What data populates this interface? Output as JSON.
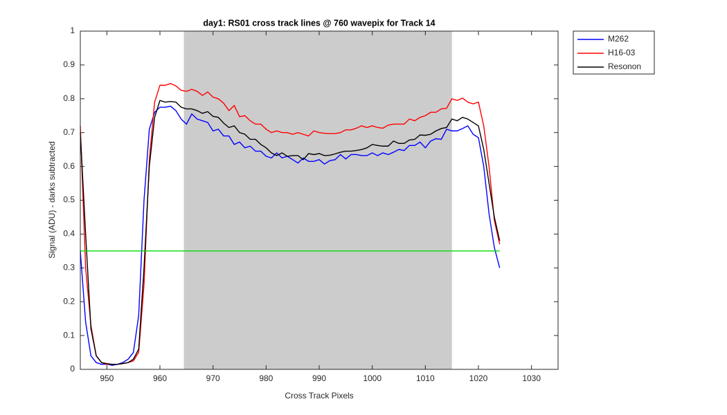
{
  "chart_data": {
    "type": "line",
    "title": "day1: RS01  cross track lines @ 760 wavepix for Track 14",
    "xlabel": "Cross Track Pixels",
    "ylabel": "Signal (ADU) - darks subtracted",
    "x": [
      945,
      946,
      947,
      948,
      949,
      950,
      951,
      952,
      953,
      954,
      955,
      956,
      957,
      958,
      959,
      960,
      961,
      962,
      963,
      964,
      965,
      966,
      967,
      968,
      969,
      970,
      971,
      972,
      973,
      974,
      975,
      976,
      977,
      978,
      979,
      980,
      981,
      982,
      983,
      984,
      985,
      986,
      987,
      988,
      989,
      990,
      991,
      992,
      993,
      994,
      995,
      996,
      997,
      998,
      999,
      1000,
      1001,
      1002,
      1003,
      1004,
      1005,
      1006,
      1007,
      1008,
      1009,
      1010,
      1011,
      1012,
      1013,
      1014,
      1015,
      1016,
      1017,
      1018,
      1019,
      1020,
      1021,
      1022,
      1023,
      1024
    ],
    "series": [
      {
        "name": "M262",
        "color": "#0000ff",
        "values": [
          0.35,
          0.14,
          0.04,
          0.02,
          0.015,
          0.015,
          0.012,
          0.015,
          0.02,
          0.03,
          0.05,
          0.16,
          0.5,
          0.71,
          0.76,
          0.775,
          0.775,
          0.778,
          0.765,
          0.74,
          0.725,
          0.755,
          0.74,
          0.735,
          0.73,
          0.705,
          0.71,
          0.69,
          0.69,
          0.665,
          0.672,
          0.655,
          0.66,
          0.645,
          0.645,
          0.63,
          0.625,
          0.64,
          0.625,
          0.63,
          0.62,
          0.61,
          0.625,
          0.615,
          0.615,
          0.62,
          0.607,
          0.617,
          0.62,
          0.635,
          0.622,
          0.635,
          0.635,
          0.632,
          0.632,
          0.64,
          0.632,
          0.64,
          0.635,
          0.642,
          0.65,
          0.647,
          0.662,
          0.662,
          0.672,
          0.655,
          0.675,
          0.682,
          0.68,
          0.71,
          0.705,
          0.705,
          0.712,
          0.72,
          0.695,
          0.685,
          0.6,
          0.46,
          0.36,
          0.3
        ]
      },
      {
        "name": "H16-03",
        "color": "#ff0000",
        "values": [
          0.72,
          0.3,
          0.13,
          0.04,
          0.02,
          0.015,
          0.015,
          0.015,
          0.017,
          0.02,
          0.025,
          0.05,
          0.25,
          0.62,
          0.79,
          0.84,
          0.84,
          0.845,
          0.838,
          0.825,
          0.822,
          0.828,
          0.822,
          0.81,
          0.82,
          0.805,
          0.8,
          0.787,
          0.765,
          0.78,
          0.747,
          0.75,
          0.735,
          0.725,
          0.725,
          0.71,
          0.7,
          0.705,
          0.7,
          0.7,
          0.695,
          0.7,
          0.695,
          0.69,
          0.705,
          0.7,
          0.698,
          0.697,
          0.697,
          0.7,
          0.708,
          0.708,
          0.713,
          0.72,
          0.715,
          0.72,
          0.715,
          0.713,
          0.722,
          0.725,
          0.725,
          0.725,
          0.74,
          0.735,
          0.745,
          0.75,
          0.76,
          0.76,
          0.77,
          0.772,
          0.8,
          0.795,
          0.802,
          0.79,
          0.785,
          0.79,
          0.72,
          0.6,
          0.44,
          0.37
        ]
      },
      {
        "name": "Resonon",
        "color": "#000000",
        "values": [
          0.7,
          0.4,
          0.12,
          0.04,
          0.02,
          0.017,
          0.015,
          0.015,
          0.017,
          0.02,
          0.03,
          0.06,
          0.3,
          0.6,
          0.745,
          0.795,
          0.79,
          0.792,
          0.79,
          0.775,
          0.77,
          0.77,
          0.765,
          0.757,
          0.762,
          0.748,
          0.745,
          0.728,
          0.715,
          0.72,
          0.7,
          0.695,
          0.68,
          0.68,
          0.665,
          0.655,
          0.64,
          0.632,
          0.64,
          0.63,
          0.632,
          0.632,
          0.62,
          0.638,
          0.635,
          0.638,
          0.632,
          0.633,
          0.637,
          0.642,
          0.645,
          0.645,
          0.647,
          0.65,
          0.655,
          0.665,
          0.662,
          0.66,
          0.66,
          0.675,
          0.668,
          0.668,
          0.678,
          0.68,
          0.693,
          0.692,
          0.695,
          0.705,
          0.712,
          0.715,
          0.74,
          0.735,
          0.745,
          0.74,
          0.73,
          0.72,
          0.65,
          0.55,
          0.45,
          0.38
        ]
      }
    ],
    "shaded_region": {
      "x": [
        964.5,
        1015
      ],
      "color": "#cccccc"
    },
    "hline": {
      "y": 0.35,
      "x": [
        945,
        1024
      ],
      "color": "#00dd00"
    },
    "xlim": [
      945,
      1035
    ],
    "xticks": [
      950,
      960,
      970,
      980,
      990,
      1000,
      1010,
      1020,
      1030
    ],
    "ylim": [
      0,
      1
    ],
    "yticks": [
      0,
      0.1,
      0.2,
      0.3,
      0.4,
      0.5,
      0.6,
      0.7,
      0.8,
      0.9,
      1
    ],
    "legend": "outside-top-right"
  }
}
